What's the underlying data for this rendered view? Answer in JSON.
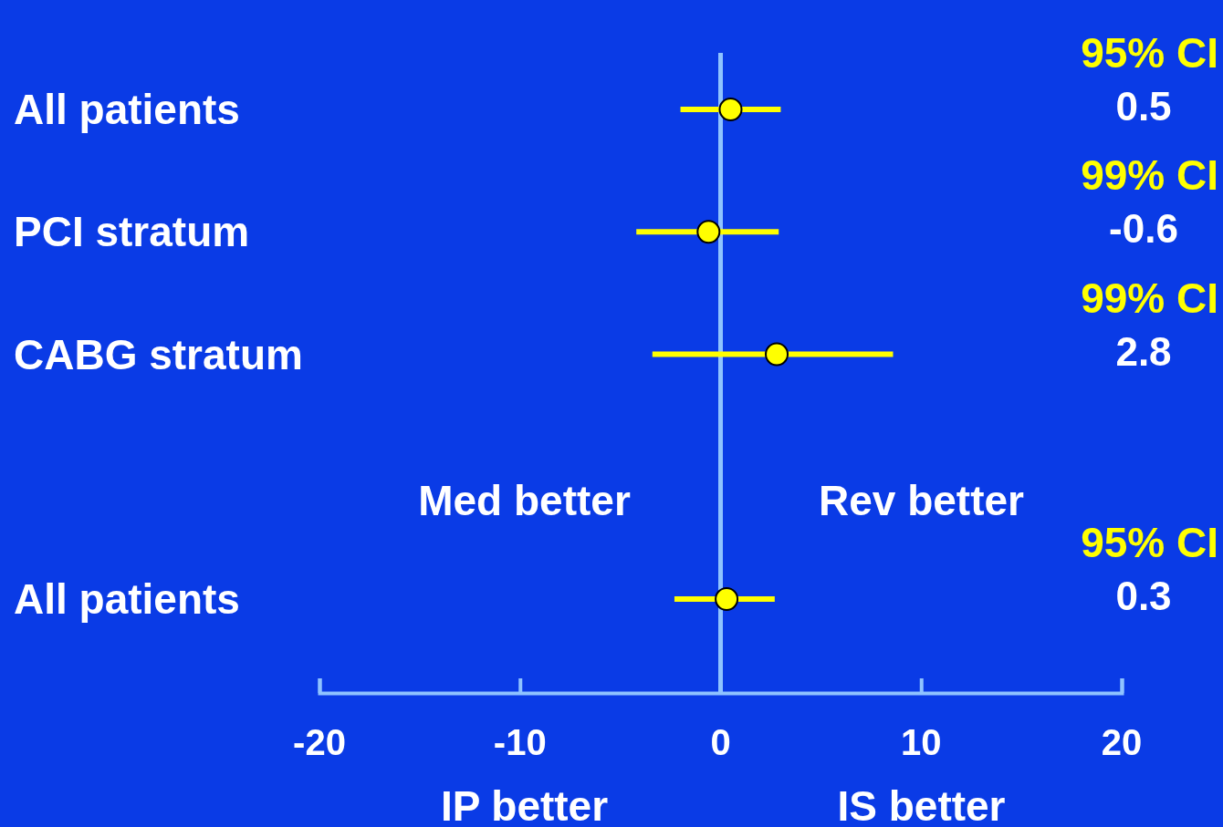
{
  "chart_data": {
    "type": "scatter",
    "orientation": "horizontal",
    "categories": [
      "All patients",
      "PCI stratum",
      "CABG stratum",
      null,
      "All patients"
    ],
    "values": [
      0.5,
      -0.6,
      2.8,
      null,
      0.3
    ],
    "errors": [
      [
        -2.0,
        3.0
      ],
      [
        -4.2,
        2.9
      ],
      [
        -3.4,
        8.6
      ],
      null,
      [
        -2.3,
        2.7
      ]
    ],
    "color": "#ffff00",
    "marker": "circle",
    "xlim": [
      -20,
      20
    ],
    "xticks": [
      -20,
      -10,
      0,
      10,
      20
    ],
    "ref_lines": [
      {
        "axis": "x",
        "value": 0,
        "color": "#8fc3ff"
      }
    ],
    "annotations": [
      "95% CI",
      "0.5",
      "99% CI",
      "-0.6",
      "99% CI",
      "2.8",
      "95% CI",
      "0.3",
      "Med better",
      "Rev better",
      "IP better",
      "IS better"
    ]
  }
}
